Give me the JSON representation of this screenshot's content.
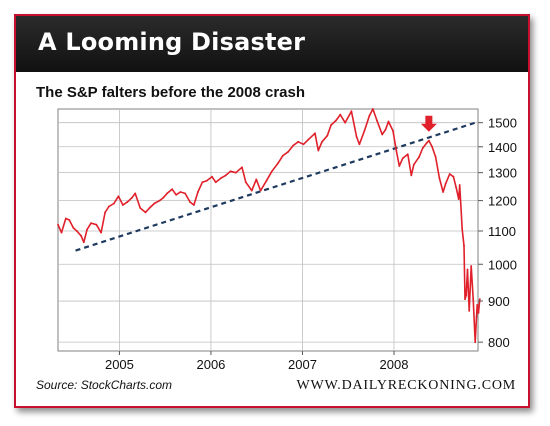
{
  "header": {
    "title": "A Looming Disaster"
  },
  "subtitle": "The S&P falters before the 2008 crash",
  "footer": {
    "source": "Source: StockCharts.com",
    "brand": "WWW.DAILYRECKONING.COM"
  },
  "colors": {
    "frame": "#c8102e",
    "series": "#e0202a",
    "trendline": "#1e3a5f",
    "header_bg": "#1a1a1a",
    "grid": "#bfbfbf"
  },
  "chart_data": {
    "type": "line",
    "title": "The S&P falters before the 2008 crash",
    "xlabel": "",
    "ylabel": "",
    "y_scale": "log",
    "ylim": [
      780,
      1560
    ],
    "xlim": [
      "2004-05-01",
      "2008-12-01"
    ],
    "x_ticks": [
      "2005",
      "2006",
      "2007",
      "2008"
    ],
    "y_ticks": [
      800,
      900,
      1000,
      1100,
      1200,
      1300,
      1400,
      1500
    ],
    "grid": true,
    "series": [
      {
        "values": [
          [
            "2004-05-01",
            1120
          ],
          [
            "2004-05-15",
            1095
          ],
          [
            "2004-06-01",
            1140
          ],
          [
            "2004-06-15",
            1135
          ],
          [
            "2004-07-01",
            1110
          ],
          [
            "2004-07-15",
            1100
          ],
          [
            "2004-08-01",
            1085
          ],
          [
            "2004-08-12",
            1065
          ],
          [
            "2004-08-25",
            1105
          ],
          [
            "2004-09-10",
            1125
          ],
          [
            "2004-10-01",
            1120
          ],
          [
            "2004-10-20",
            1095
          ],
          [
            "2004-11-05",
            1160
          ],
          [
            "2004-11-20",
            1180
          ],
          [
            "2004-12-10",
            1190
          ],
          [
            "2004-12-28",
            1215
          ],
          [
            "2005-01-15",
            1185
          ],
          [
            "2005-02-01",
            1195
          ],
          [
            "2005-02-20",
            1210
          ],
          [
            "2005-03-05",
            1225
          ],
          [
            "2005-03-25",
            1175
          ],
          [
            "2005-04-15",
            1160
          ],
          [
            "2005-05-01",
            1175
          ],
          [
            "2005-05-20",
            1190
          ],
          [
            "2005-06-10",
            1200
          ],
          [
            "2005-06-25",
            1210
          ],
          [
            "2005-07-10",
            1225
          ],
          [
            "2005-07-30",
            1240
          ],
          [
            "2005-08-15",
            1220
          ],
          [
            "2005-09-01",
            1230
          ],
          [
            "2005-09-20",
            1225
          ],
          [
            "2005-10-10",
            1195
          ],
          [
            "2005-10-25",
            1185
          ],
          [
            "2005-11-10",
            1230
          ],
          [
            "2005-11-28",
            1265
          ],
          [
            "2005-12-15",
            1270
          ],
          [
            "2006-01-05",
            1285
          ],
          [
            "2006-01-20",
            1265
          ],
          [
            "2006-02-10",
            1280
          ],
          [
            "2006-03-01",
            1290
          ],
          [
            "2006-03-20",
            1305
          ],
          [
            "2006-04-10",
            1300
          ],
          [
            "2006-05-05",
            1320
          ],
          [
            "2006-05-20",
            1265
          ],
          [
            "2006-06-13",
            1235
          ],
          [
            "2006-07-01",
            1275
          ],
          [
            "2006-07-18",
            1235
          ],
          [
            "2006-08-10",
            1270
          ],
          [
            "2006-09-01",
            1305
          ],
          [
            "2006-09-25",
            1335
          ],
          [
            "2006-10-15",
            1365
          ],
          [
            "2006-11-05",
            1380
          ],
          [
            "2006-11-25",
            1405
          ],
          [
            "2006-12-15",
            1420
          ],
          [
            "2007-01-05",
            1410
          ],
          [
            "2007-01-25",
            1430
          ],
          [
            "2007-02-20",
            1455
          ],
          [
            "2007-03-05",
            1385
          ],
          [
            "2007-03-20",
            1420
          ],
          [
            "2007-04-10",
            1445
          ],
          [
            "2007-04-25",
            1490
          ],
          [
            "2007-05-15",
            1510
          ],
          [
            "2007-06-01",
            1535
          ],
          [
            "2007-06-20",
            1500
          ],
          [
            "2007-07-15",
            1550
          ],
          [
            "2007-08-05",
            1440
          ],
          [
            "2007-08-16",
            1410
          ],
          [
            "2007-09-05",
            1465
          ],
          [
            "2007-09-25",
            1530
          ],
          [
            "2007-10-09",
            1560
          ],
          [
            "2007-10-25",
            1510
          ],
          [
            "2007-11-15",
            1450
          ],
          [
            "2007-11-28",
            1470
          ],
          [
            "2007-12-10",
            1505
          ],
          [
            "2007-12-28",
            1465
          ],
          [
            "2008-01-10",
            1385
          ],
          [
            "2008-01-22",
            1325
          ],
          [
            "2008-02-05",
            1355
          ],
          [
            "2008-02-25",
            1370
          ],
          [
            "2008-03-10",
            1290
          ],
          [
            "2008-03-20",
            1330
          ],
          [
            "2008-04-10",
            1360
          ],
          [
            "2008-04-25",
            1395
          ],
          [
            "2008-05-10",
            1415
          ],
          [
            "2008-05-19",
            1425
          ],
          [
            "2008-06-01",
            1400
          ],
          [
            "2008-06-15",
            1360
          ],
          [
            "2008-06-30",
            1280
          ],
          [
            "2008-07-15",
            1230
          ],
          [
            "2008-07-25",
            1260
          ],
          [
            "2008-08-10",
            1295
          ],
          [
            "2008-08-25",
            1285
          ],
          [
            "2008-09-05",
            1245
          ],
          [
            "2008-09-15",
            1205
          ],
          [
            "2008-09-19",
            1255
          ],
          [
            "2008-09-29",
            1105
          ],
          [
            "2008-10-06",
            1055
          ],
          [
            "2008-10-10",
            905
          ],
          [
            "2008-10-15",
            915
          ],
          [
            "2008-10-20",
            985
          ],
          [
            "2008-10-27",
            875
          ],
          [
            "2008-11-04",
            995
          ],
          [
            "2008-11-12",
            905
          ],
          [
            "2008-11-20",
            800
          ],
          [
            "2008-11-25",
            860
          ],
          [
            "2008-11-28",
            890
          ],
          [
            "2008-12-03",
            870
          ],
          [
            "2008-12-08",
            905
          ]
        ]
      }
    ],
    "trendline": [
      [
        "2004-07-10",
        1040
      ],
      [
        "2008-11-20",
        1500
      ]
    ],
    "annotations": [
      {
        "type": "arrow-down",
        "x": "2008-05-19",
        "y": 1470
      }
    ]
  }
}
